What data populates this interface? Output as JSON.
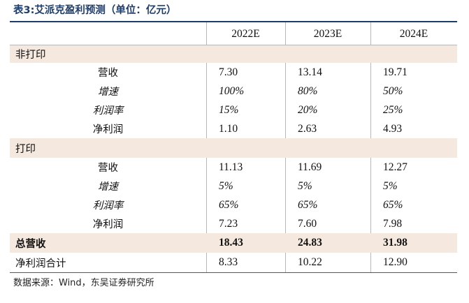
{
  "title": "表3:艾派克盈利预测（单位：亿元）",
  "columns": [
    "2022E",
    "2023E",
    "2024E"
  ],
  "sections": [
    {
      "label": "非打印",
      "rows": [
        {
          "label": "营收",
          "values": [
            "7.30",
            "13.14",
            "19.71"
          ]
        },
        {
          "label": "增速",
          "values": [
            "100%",
            "80%",
            "50%"
          ]
        },
        {
          "label": "利润率",
          "values": [
            "15%",
            "20%",
            "25%"
          ]
        },
        {
          "label": "净利润",
          "values": [
            "1.10",
            "2.63",
            "4.93"
          ]
        }
      ]
    },
    {
      "label": "打印",
      "rows": [
        {
          "label": "营收",
          "values": [
            "11.13",
            "11.69",
            "12.27"
          ]
        },
        {
          "label": "增速",
          "values": [
            "5%",
            "5%",
            "5%"
          ]
        },
        {
          "label": "利润率",
          "values": [
            "65%",
            "65%",
            "65%"
          ]
        },
        {
          "label": "净利润",
          "values": [
            "7.23",
            "7.60",
            "7.98"
          ]
        }
      ]
    }
  ],
  "total_revenue": {
    "label": "总营收",
    "values": [
      "18.43",
      "24.83",
      "31.98"
    ]
  },
  "net_profit_total": {
    "label": "净利润合计",
    "values": [
      "8.33",
      "10.22",
      "12.90"
    ]
  },
  "source": "数据来源：Wind，东吴证券研究所"
}
